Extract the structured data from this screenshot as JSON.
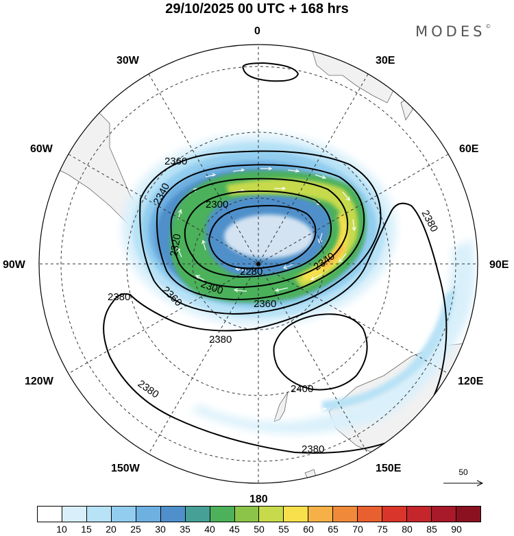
{
  "title": "29/10/2025  00 UTC  + 168 hrs",
  "brand": "MODES",
  "brand_mark": "©",
  "longitude_labels": [
    "0",
    "30E",
    "60E",
    "90E",
    "120E",
    "150E",
    "180",
    "150W",
    "120W",
    "90W",
    "60W",
    "30W"
  ],
  "height_contours": [
    {
      "label": "2360",
      "kind": "closed-high"
    },
    {
      "label": "2340"
    },
    {
      "label": "2320"
    },
    {
      "label": "2300"
    },
    {
      "label": "2280"
    },
    {
      "label": "2380"
    },
    {
      "label": "2400"
    }
  ],
  "contour_labels_on_map": [
    "2360",
    "2340",
    "2300",
    "2320",
    "2280",
    "2340",
    "2300",
    "2360",
    "2360",
    "2380",
    "2380",
    "2380",
    "2380",
    "2380",
    "2400"
  ],
  "reference_vector": {
    "value": "50",
    "icon": "arrow-right-icon"
  },
  "colorbar": {
    "colors": [
      "#ffffff",
      "#d9f0fb",
      "#b8e2f6",
      "#92cdef",
      "#6eb0e0",
      "#4f90cb",
      "#47a095",
      "#4cb15a",
      "#8cc44a",
      "#c7da4c",
      "#f8e04c",
      "#f5b148",
      "#f08a3a",
      "#e8602f",
      "#d9352a",
      "#c4262c",
      "#a8192a",
      "#8a1220"
    ],
    "labels": [
      "10",
      "15",
      "20",
      "25",
      "30",
      "35",
      "40",
      "45",
      "50",
      "55",
      "60",
      "65",
      "70",
      "75",
      "80",
      "85",
      "90"
    ]
  }
}
